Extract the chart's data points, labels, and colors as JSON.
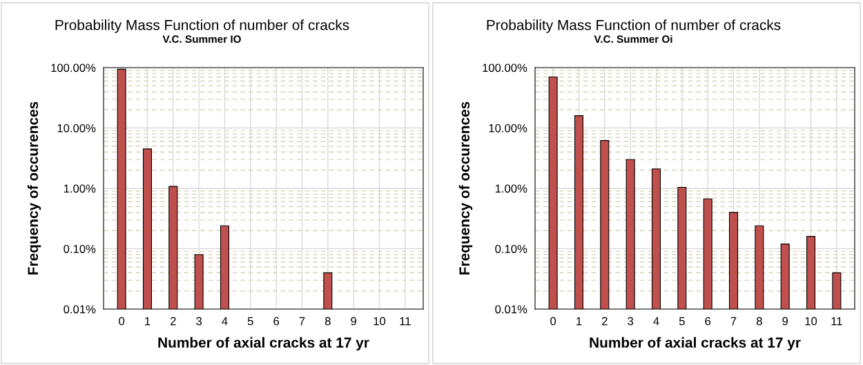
{
  "chart_data": [
    {
      "type": "bar",
      "title": "Probability Mass Function of number of cracks",
      "subtitle": "V.C. Summer IO",
      "xlabel": "Number of axial cracks at 17 yr",
      "ylabel": "Frequency of occurences",
      "categories": [
        "0",
        "1",
        "2",
        "3",
        "4",
        "5",
        "6",
        "7",
        "8",
        "9",
        "10",
        "11"
      ],
      "values": [
        94,
        4.5,
        1.08,
        0.08,
        0.24,
        null,
        null,
        null,
        0.04,
        null,
        null,
        null
      ],
      "color": "#c0504d",
      "log": "y",
      "ylim": [
        0.01,
        100
      ],
      "yticks": [
        {
          "value": 0.01,
          "label": "0.01%"
        },
        {
          "value": 0.1,
          "label": "0.10%"
        },
        {
          "value": 1,
          "label": "1.00%"
        },
        {
          "value": 10,
          "label": "10.00%"
        },
        {
          "value": 100,
          "label": "100.00%"
        }
      ],
      "grid": true,
      "legend": false
    },
    {
      "type": "bar",
      "title": "Probability Mass Function of number of cracks",
      "subtitle": "V.C. Summer Oi",
      "xlabel": "Number of axial cracks at 17 yr",
      "ylabel": "Frequency of occurences",
      "categories": [
        "0",
        "1",
        "2",
        "3",
        "4",
        "5",
        "6",
        "7",
        "8",
        "9",
        "10",
        "11"
      ],
      "values": [
        70,
        16,
        6.2,
        3.0,
        2.1,
        1.04,
        0.67,
        0.4,
        0.24,
        0.12,
        0.16,
        0.04
      ],
      "color": "#c0504d",
      "log": "y",
      "ylim": [
        0.01,
        100
      ],
      "yticks": [
        {
          "value": 0.01,
          "label": "0.01%"
        },
        {
          "value": 0.1,
          "label": "0.10%"
        },
        {
          "value": 1,
          "label": "1.00%"
        },
        {
          "value": 10,
          "label": "10.00%"
        },
        {
          "value": 100,
          "label": "100.00%"
        }
      ],
      "grid": true,
      "legend": false
    }
  ]
}
